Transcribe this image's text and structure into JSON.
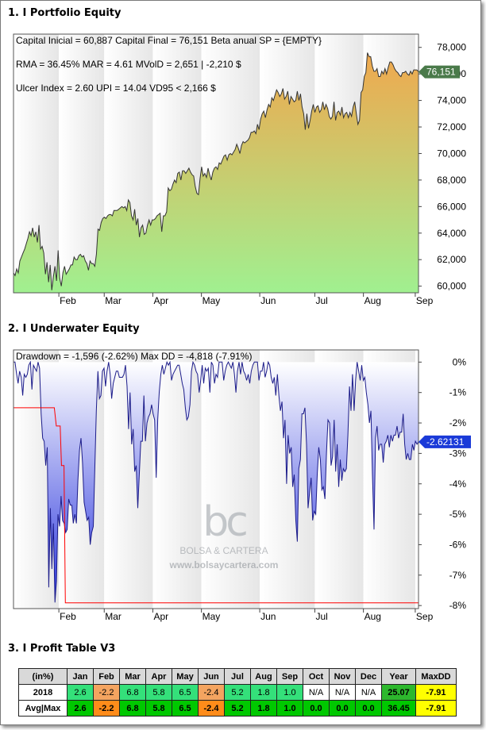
{
  "sections": {
    "s1_title": "1. I Portfolio Equity",
    "s2_title": "2. I Underwater Equity",
    "s3_title": "3. I Profit Table V3"
  },
  "watermark": {
    "brand": "bc",
    "name": "BOLSA & CARTERA",
    "url": "www.bolsaycartera.com"
  },
  "chart_data": [
    {
      "type": "area",
      "stats_lines": [
        "Capital Inicial = 60,887  Capital Final = 76,151  Beta anual SP = {EMPTY}",
        "RMA = 36.45%   MAR = 4.61   MVolD = 2,651 | -2,210 $",
        "Ulcer Index = 2.60   UPI = 14.04   VD95 < 2,166 $"
      ],
      "x_tick_labels": [
        "Feb",
        "Mar",
        "Apr",
        "May",
        "Jun",
        "Jul",
        "Aug",
        "Sep"
      ],
      "x_tick_pos": [
        7,
        14,
        21.5,
        29,
        38,
        46.5,
        54,
        62
      ],
      "x_range": [
        0,
        62.5
      ],
      "ylim": [
        59500,
        79000
      ],
      "y_ticks": [
        60000,
        62000,
        64000,
        66000,
        68000,
        70000,
        72000,
        74000,
        76000,
        78000
      ],
      "y_tick_labels": [
        "60,000",
        "62,000",
        "64,000",
        "66,000",
        "68,000",
        "70,000",
        "72,000",
        "74,000",
        "76,000",
        "78,000"
      ],
      "last_value_label": "76,151",
      "last_value": 76151,
      "colors": {
        "top": "#f0a84e",
        "bottom": "#a0f090",
        "line": "#333333",
        "badge": "#4a7a4a"
      },
      "series": [
        {
          "values": [
            61000,
            60800,
            61300,
            61000,
            61900,
            62200,
            62500,
            62800,
            63200,
            63600,
            64100,
            63800,
            64400,
            63700,
            64100,
            63300,
            64600,
            62800,
            63000,
            62500,
            60900,
            61800,
            60300,
            61600,
            59700,
            60700,
            61500,
            60400,
            62700,
            60600,
            60000,
            61000,
            61500,
            60900,
            61100,
            61300,
            61600,
            61600,
            62200,
            62000,
            62000,
            62300,
            62400,
            62200,
            62300,
            61900,
            61700,
            61200,
            61900,
            61700,
            61700,
            61500,
            62400,
            64300,
            64200,
            64800,
            65100,
            65200,
            65100,
            65300,
            65400,
            65400,
            65300,
            65700,
            65700,
            65700,
            65800,
            65900,
            66000,
            65900,
            66000,
            65700,
            66500,
            66300,
            65300,
            65000,
            65800,
            64600,
            65100,
            63700,
            64400,
            64600,
            63900,
            64000,
            64600,
            65000,
            64600,
            65000,
            65000,
            65100,
            65300,
            65400,
            65500,
            64100,
            65300,
            65300,
            65600,
            67400,
            67200,
            67300,
            67700,
            68000,
            67800,
            68500,
            68600,
            68000,
            68700,
            68700,
            68500,
            68700,
            68900,
            68600,
            68400,
            68300,
            67500,
            67000,
            66900,
            68100,
            69000,
            68300,
            68500,
            68200,
            68900,
            68400,
            68000,
            68600,
            68900,
            69000,
            68800,
            69300,
            69200,
            69500,
            69800,
            69900,
            69500,
            69900,
            70000,
            69900,
            70100,
            70300,
            70700,
            70400,
            70000,
            70600,
            70900,
            70800,
            70900,
            71000,
            71200,
            71600,
            71600,
            71700,
            71500,
            72200,
            71800,
            72600,
            73000,
            73200,
            72700,
            73300,
            73700,
            73500,
            74200,
            74000,
            74400,
            74800,
            74600,
            74300,
            74500,
            74900,
            74100,
            74300,
            74700,
            73700,
            74300,
            74100,
            73900,
            74000,
            74700,
            74000,
            74500,
            73500,
            73000,
            71800,
            73000,
            71900,
            72500,
            73200,
            73700,
            73100,
            73500,
            73600,
            73100,
            73300,
            73900,
            73300,
            73700,
            73400,
            72800,
            72600,
            72800,
            73900,
            72500,
            73100,
            73200,
            72900,
            73500,
            72700,
            73000,
            73100,
            72700,
            73100,
            72800,
            73500,
            73900,
            73000,
            72200,
            72500,
            74600,
            74800,
            75800,
            76100,
            77600,
            77300,
            77300,
            76600,
            76200,
            76200,
            76400,
            75800,
            75800,
            76200,
            76000,
            76400,
            76000,
            76500,
            76900,
            76900,
            76700,
            76400,
            76200,
            76100,
            75900,
            75800,
            76100,
            76100,
            76200,
            76000,
            75900,
            76200,
            76000,
            76300,
            76300,
            76300,
            76151
          ]
        }
      ]
    },
    {
      "type": "area",
      "stats_line": "Drawdown = -1,596 (-2.62%)        Max DD = -4,818 (-7.91%)",
      "x_tick_labels": [
        "Feb",
        "Mar",
        "Apr",
        "May",
        "Jun",
        "Jul",
        "Aug",
        "Sep"
      ],
      "x_tick_pos": [
        7,
        14,
        21.5,
        29,
        38,
        46.5,
        54,
        62
      ],
      "x_range": [
        0,
        62.5
      ],
      "ylim": [
        -8.1,
        0.4
      ],
      "y_ticks": [
        0,
        -1,
        -2,
        -3,
        -4,
        -5,
        -6,
        -7,
        -8
      ],
      "y_tick_labels": [
        "0%",
        "-1%",
        "-2%",
        "-3%",
        "-4%",
        "-5%",
        "-6%",
        "-7%",
        "-8%"
      ],
      "last_value_label": "-2.62131",
      "last_value": -2.62131,
      "colors": {
        "top": "#ffffff",
        "bottom": "#2a35dd",
        "line": "#1c1c8a",
        "maxdd_line": "#ff0000",
        "badge": "#1a3ad8"
      },
      "series": [
        {
          "name": "drawdown",
          "values": [
            0.0,
            0.0,
            -0.4,
            -0.7,
            -0.3,
            -0.5,
            -1.1,
            -0.4,
            -0.5,
            -0.4,
            -0.1,
            0.0,
            -0.9,
            -0.1,
            -0.2,
            -0.3,
            0.0,
            -0.2,
            -1.7,
            -2.5,
            -2.6,
            -3.4,
            -2.8,
            -7.4,
            -4.8,
            -6.8,
            -5.3,
            -7.9,
            -7.2,
            -5.0,
            -5.4,
            -4.4,
            -5.2,
            -5.3,
            -5.6,
            -5.5,
            -4.5,
            -4.7,
            -4.7,
            -5.3,
            -5.0,
            -5.3,
            -3.9,
            -2.9,
            -2.5,
            -3.3,
            -4.6,
            -4.9,
            -5.2,
            -5.1,
            -6.0,
            -5.6,
            -5.4,
            -3.5,
            -1.6,
            -0.3,
            -1.2,
            -1.1,
            -0.3,
            -0.2,
            -0.8,
            -0.3,
            0.0,
            -0.4,
            -1.2,
            -0.7,
            -0.5,
            -0.3,
            -0.3,
            -0.5,
            -0.5,
            -0.5,
            -0.4,
            -0.1,
            -0.8,
            -2.2,
            -1.0,
            -2.7,
            -2.2,
            -3.6,
            -3.4,
            -4.8,
            -3.7,
            -2.6,
            -2.6,
            -1.1,
            -2.6,
            -2.0,
            -1.8,
            -1.7,
            -1.4,
            -1.7,
            -1.9,
            -3.8,
            -1.9,
            -1.0,
            -0.4,
            -0.1,
            -0.4,
            -0.2,
            0.0,
            -0.1,
            0.0,
            -0.6,
            -0.4,
            -0.3,
            -0.2,
            -0.1,
            -0.1,
            -0.4,
            -0.7,
            -0.9,
            -1.5,
            -1.9,
            -1.8,
            -1.4,
            -0.3,
            0.0,
            -0.1,
            -0.3,
            -0.4,
            -1.0,
            -0.6,
            -0.1,
            -0.7,
            -0.2,
            -0.3,
            -0.2,
            -1.0,
            0.0,
            -0.1,
            -0.7,
            -0.4,
            -0.5,
            0.0,
            0.0,
            0.0,
            -0.6,
            -0.3,
            -0.1,
            0.0,
            -0.1,
            -0.2,
            0.0,
            -0.4,
            -1.0,
            -0.3,
            0.0,
            -0.4,
            0.0,
            -0.3,
            -0.4,
            -0.6,
            -0.4,
            -0.7,
            -0.3,
            -0.1,
            0.0,
            0.0,
            0.0,
            -0.6,
            -0.3,
            -0.3,
            0.0,
            -0.5,
            -0.3,
            0.0,
            -0.1,
            -0.5,
            -0.7,
            -0.5,
            -1.1,
            -0.4,
            -1.1,
            -1.6,
            -1.3,
            -2.5,
            -1.9,
            -4.0,
            -2.4,
            -3.0,
            -2.8,
            -4.1,
            -3.7,
            -5.2,
            -5.9,
            -3.5,
            -3.2,
            -1.7,
            -1.7,
            -1.5,
            -2.7,
            -4.8,
            -4.3,
            -3.8,
            -5.2,
            -4.9,
            -5.0,
            -3.7,
            -2.8,
            -3.2,
            -4.2,
            -4.1,
            -4.5,
            -3.0,
            -1.9,
            -2.0,
            -3.4,
            -3.1,
            -1.9,
            -3.6,
            -2.7,
            -4.1,
            -3.2,
            -3.9,
            -3.5,
            -3.6,
            -3.5,
            -2.4,
            -0.8,
            -1.6,
            -0.4,
            -1.6,
            -0.6,
            0.0,
            -0.3,
            -0.6,
            -0.1,
            -0.6,
            -0.5,
            -1.0,
            -1.4,
            -2.0,
            -1.6,
            -3.7,
            -5.5,
            -2.5,
            -2.1,
            -2.9,
            -2.7,
            -2.7,
            -3.3,
            -2.7,
            -2.6,
            -2.4,
            -2.8,
            -2.4,
            -2.6,
            -2.4,
            -2.4,
            -2.1,
            -2.5,
            -2.3,
            -2.3,
            -1.7,
            -2.7,
            -3.2,
            -3.0,
            -3.2,
            -3.2,
            -2.7,
            -2.9,
            -2.6,
            -2.7,
            -2.62131
          ]
        },
        {
          "name": "maxdd",
          "points": [
            [
              0,
              -1.5
            ],
            [
              6.3,
              -1.5
            ],
            [
              6.6,
              -2.1
            ],
            [
              7.2,
              -2.1
            ],
            [
              7.4,
              -3.4
            ],
            [
              7.8,
              -3.4
            ],
            [
              8.0,
              -7.91
            ],
            [
              62.5,
              -7.91
            ]
          ]
        }
      ]
    }
  ],
  "profit_table": {
    "headers": [
      "(in%)",
      "Jan",
      "Feb",
      "Mar",
      "Apr",
      "May",
      "Jun",
      "Jul",
      "Aug",
      "Sep",
      "Oct",
      "Nov",
      "Dec",
      "Year",
      "MaxDD"
    ],
    "rows": [
      {
        "label": "2018",
        "cells": [
          "2.6",
          "-2.2",
          "6.8",
          "5.8",
          "6.5",
          "-2.4",
          "5.2",
          "1.8",
          "1.0",
          "N/A",
          "N/A",
          "N/A"
        ],
        "year": "25.07",
        "maxdd": "-7.91"
      },
      {
        "label": "Avg|Max",
        "cells": [
          "2.6",
          "-2.2",
          "6.8",
          "5.8",
          "6.5",
          "-2.4",
          "5.2",
          "1.8",
          "1.0",
          "0.0",
          "0.0",
          "0.0"
        ],
        "year": "36.45",
        "maxdd": "-7.91"
      }
    ]
  }
}
